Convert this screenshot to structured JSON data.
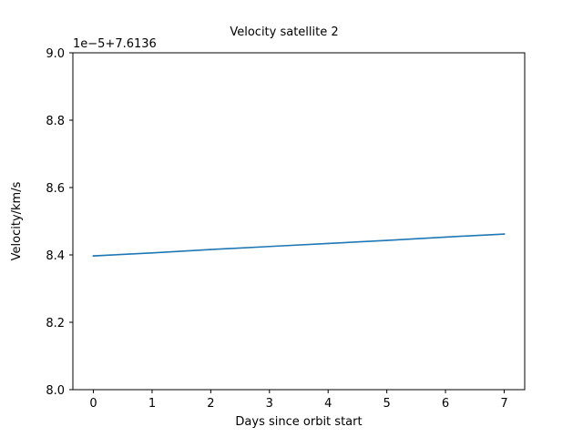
{
  "chart_data": {
    "type": "line",
    "title": "Velocity satellite 2",
    "xlabel": "Days since orbit start",
    "ylabel": "Velocity/km/s",
    "offset_label": "1e−5+7.6136",
    "x": [
      0,
      1,
      2,
      3,
      4,
      5,
      6,
      7
    ],
    "series": [
      {
        "values": [
          8.397,
          8.406,
          8.416,
          8.425,
          8.434,
          8.443,
          8.453,
          8.462
        ],
        "color": "#1f77b4"
      }
    ],
    "xlim": [
      -0.35,
      7.35
    ],
    "ylim": [
      8.0,
      9.0
    ],
    "xticks": [
      0,
      1,
      2,
      3,
      4,
      5,
      6,
      7
    ],
    "xtick_labels": [
      "0",
      "1",
      "2",
      "3",
      "4",
      "5",
      "6",
      "7"
    ],
    "yticks": [
      8.0,
      8.2,
      8.4,
      8.6,
      8.8,
      9.0
    ],
    "ytick_labels": [
      "8.0",
      "8.2",
      "8.4",
      "8.6",
      "8.8",
      "9.0"
    ],
    "grid": false,
    "legend": false
  }
}
